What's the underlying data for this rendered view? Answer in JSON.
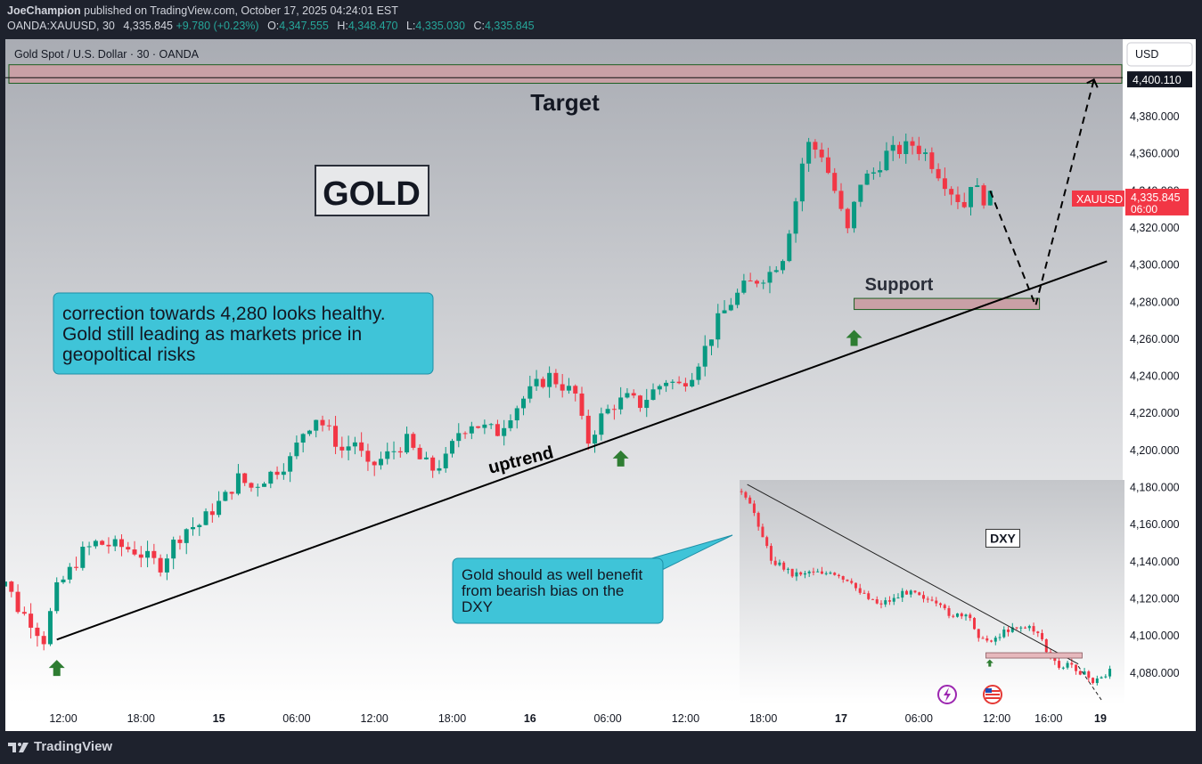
{
  "header": {
    "author": "JoeChampion",
    "published_text": " published on TradingView.com, October 17, 2025 04:24:01 EST",
    "symbol_line": "OANDA:XAUUSD, 30",
    "last": "4,335.845",
    "change": "+9.780 (+0.23%)",
    "o_label": "O:",
    "o_val": "4,347.555",
    "h_label": "H:",
    "h_val": "4,348.470",
    "l_label": "L:",
    "l_val": "4,335.030",
    "c_label": "C:",
    "c_val": "4,335.845"
  },
  "chart_title": "Gold Spot / U.S. Dollar · 30 · OANDA",
  "currency_button": "USD",
  "footer": {
    "logo_text": "TradingView"
  },
  "colors": {
    "up": "#089981",
    "down": "#f23645",
    "target_zone": "#c9a0a6",
    "callout": "#3fc4d8"
  },
  "chart_data": {
    "type": "candlestick",
    "symbol": "XAUUSD",
    "timeframe": "30",
    "y_ticks": [
      4080,
      4100,
      4120,
      4140,
      4160,
      4180,
      4200,
      4220,
      4240,
      4260,
      4280,
      4300,
      4320,
      4340,
      4360,
      4380
    ],
    "y_tick_labels": [
      "4,080.000",
      "4,100.000",
      "4,120.000",
      "4,140.000",
      "4,160.000",
      "4,180.000",
      "4,200.000",
      "4,220.000",
      "4,240.000",
      "4,260.000",
      "4,280.000",
      "4,300.000",
      "4,320.000",
      "4,340.000",
      "4,360.000",
      "4,380.000"
    ],
    "x_ticks": [
      {
        "label": "12:00",
        "hour": 12
      },
      {
        "label": "18:00",
        "hour": 18
      },
      {
        "label": "15",
        "hour": 24,
        "bold": true
      },
      {
        "label": "06:00",
        "hour": 30
      },
      {
        "label": "12:00",
        "hour": 36
      },
      {
        "label": "18:00",
        "hour": 42
      },
      {
        "label": "16",
        "hour": 48,
        "bold": true
      },
      {
        "label": "06:00",
        "hour": 54
      },
      {
        "label": "12:00",
        "hour": 60
      },
      {
        "label": "18:00",
        "hour": 66
      },
      {
        "label": "17",
        "hour": 72,
        "bold": true
      },
      {
        "label": "06:00",
        "hour": 78
      },
      {
        "label": "12:00",
        "hour": 84
      },
      {
        "label": "16:00",
        "hour": 88
      },
      {
        "label": "19",
        "hour": 92,
        "bold": true
      }
    ],
    "price_anchors": [
      [
        6,
        4140
      ],
      [
        7,
        4130
      ],
      [
        8,
        4130
      ],
      [
        9,
        4115
      ],
      [
        10,
        4108
      ],
      [
        11,
        4098
      ],
      [
        11.5,
        4112
      ],
      [
        12,
        4125
      ],
      [
        13,
        4135
      ],
      [
        14,
        4145
      ],
      [
        15,
        4150
      ],
      [
        17,
        4148
      ],
      [
        18,
        4146
      ],
      [
        19,
        4142
      ],
      [
        20,
        4138
      ],
      [
        21,
        4150
      ],
      [
        22,
        4158
      ],
      [
        23,
        4160
      ],
      [
        24,
        4168
      ],
      [
        25,
        4175
      ],
      [
        26,
        4185
      ],
      [
        27,
        4180
      ],
      [
        28,
        4185
      ],
      [
        29,
        4190
      ],
      [
        30,
        4195
      ],
      [
        31,
        4210
      ],
      [
        32,
        4218
      ],
      [
        33,
        4210
      ],
      [
        34,
        4200
      ],
      [
        35,
        4205
      ],
      [
        36,
        4190
      ],
      [
        37,
        4195
      ],
      [
        38,
        4200
      ],
      [
        39,
        4205
      ],
      [
        40,
        4195
      ],
      [
        41,
        4190
      ],
      [
        42,
        4195
      ],
      [
        43,
        4210
      ],
      [
        44,
        4215
      ],
      [
        45,
        4212
      ],
      [
        46,
        4210
      ],
      [
        47,
        4220
      ],
      [
        48,
        4228
      ],
      [
        49,
        4235
      ],
      [
        50,
        4240
      ],
      [
        51,
        4235
      ],
      [
        52,
        4230
      ],
      [
        52.5,
        4215
      ],
      [
        53,
        4205
      ],
      [
        54,
        4218
      ],
      [
        55,
        4225
      ],
      [
        56,
        4228
      ],
      [
        57,
        4225
      ],
      [
        58,
        4232
      ],
      [
        59,
        4238
      ],
      [
        60,
        4235
      ],
      [
        61,
        4242
      ],
      [
        62,
        4255
      ],
      [
        63,
        4270
      ],
      [
        64,
        4280
      ],
      [
        65,
        4288
      ],
      [
        66,
        4292
      ],
      [
        67,
        4296
      ],
      [
        68,
        4305
      ],
      [
        68.5,
        4320
      ],
      [
        69,
        4335
      ],
      [
        69.5,
        4355
      ],
      [
        70,
        4365
      ],
      [
        71,
        4360
      ],
      [
        71.5,
        4350
      ],
      [
        72,
        4340
      ],
      [
        72.5,
        4328
      ],
      [
        73,
        4318
      ],
      [
        73.5,
        4332
      ],
      [
        74,
        4345
      ],
      [
        75,
        4350
      ],
      [
        76,
        4360
      ],
      [
        77,
        4362
      ],
      [
        78,
        4365
      ],
      [
        79,
        4360
      ],
      [
        80,
        4350
      ],
      [
        81,
        4340
      ],
      [
        82,
        4332
      ],
      [
        82.5,
        4345
      ],
      [
        83,
        4340
      ],
      [
        83.5,
        4336
      ]
    ],
    "last_price_label": "XAUUSD",
    "last_price": "4,335.845",
    "countdown": "06:00",
    "target_price_label": "4,400.110",
    "target_zone": [
      4398,
      4408
    ],
    "support_zone": [
      4276,
      4282
    ],
    "uptrend_line": [
      [
        11.5,
        4098
      ],
      [
        92.5,
        4302
      ]
    ],
    "projection_path": [
      [
        83.5,
        4340
      ],
      [
        87,
        4278
      ],
      [
        91.5,
        4400
      ]
    ],
    "up_arrows": [
      [
        11.5,
        4087
      ],
      [
        55,
        4200
      ],
      [
        73,
        4265
      ]
    ],
    "annotations": {
      "target": "Target",
      "gold": "GOLD",
      "support": "Support",
      "uptrend": "uptrend",
      "callout_main": [
        "correction towards 4,280 looks healthy.",
        "Gold still leading as markets price in",
        "geopoltical risks"
      ],
      "callout_dxy": [
        "Gold should as well benefit",
        "from bearish bias on the",
        "DXY"
      ]
    },
    "inset": {
      "title": "DXY",
      "series_anchors": [
        [
          0,
          0.05
        ],
        [
          0.04,
          0.15
        ],
        [
          0.08,
          0.35
        ],
        [
          0.14,
          0.42
        ],
        [
          0.2,
          0.4
        ],
        [
          0.26,
          0.44
        ],
        [
          0.32,
          0.5
        ],
        [
          0.36,
          0.55
        ],
        [
          0.4,
          0.53
        ],
        [
          0.45,
          0.48
        ],
        [
          0.5,
          0.55
        ],
        [
          0.55,
          0.6
        ],
        [
          0.6,
          0.62
        ],
        [
          0.63,
          0.72
        ],
        [
          0.67,
          0.7
        ],
        [
          0.71,
          0.65
        ],
        [
          0.75,
          0.66
        ],
        [
          0.78,
          0.68
        ],
        [
          0.8,
          0.78
        ],
        [
          0.83,
          0.84
        ],
        [
          0.86,
          0.82
        ],
        [
          0.89,
          0.86
        ],
        [
          0.92,
          0.9
        ],
        [
          0.95,
          0.87
        ],
        [
          0.97,
          0.82
        ]
      ],
      "trend_line": [
        [
          0.02,
          0.02
        ],
        [
          0.88,
          0.82
        ]
      ],
      "projection": [
        [
          0.88,
          0.83
        ],
        [
          0.94,
          0.98
        ]
      ]
    }
  }
}
